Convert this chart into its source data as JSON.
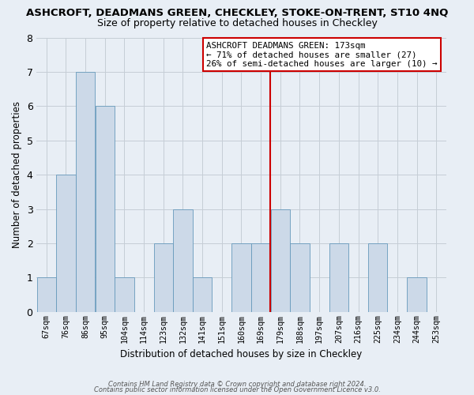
{
  "title": "ASHCROFT, DEADMANS GREEN, CHECKLEY, STOKE-ON-TRENT, ST10 4NQ",
  "subtitle": "Size of property relative to detached houses in Checkley",
  "xlabel": "Distribution of detached houses by size in Checkley",
  "ylabel": "Number of detached properties",
  "bin_labels": [
    "67sqm",
    "76sqm",
    "86sqm",
    "95sqm",
    "104sqm",
    "114sqm",
    "123sqm",
    "132sqm",
    "141sqm",
    "151sqm",
    "160sqm",
    "169sqm",
    "179sqm",
    "188sqm",
    "197sqm",
    "207sqm",
    "216sqm",
    "225sqm",
    "234sqm",
    "244sqm",
    "253sqm"
  ],
  "counts": [
    1,
    4,
    7,
    6,
    1,
    0,
    2,
    3,
    1,
    0,
    2,
    2,
    3,
    2,
    0,
    2,
    0,
    2,
    0,
    1,
    0
  ],
  "bar_color": "#ccd9e8",
  "bar_edge_color": "#6699bb",
  "grid_color": "#c5cdd6",
  "background_color": "#e8eef5",
  "vline_value": 173,
  "vline_color": "#cc0000",
  "annotation_title": "ASHCROFT DEADMANS GREEN: 173sqm",
  "annotation_line1": "← 71% of detached houses are smaller (27)",
  "annotation_line2": "26% of semi-detached houses are larger (10) →",
  "annotation_box_facecolor": "#ffffff",
  "annotation_box_edgecolor": "#cc0000",
  "ylim": [
    0,
    8
  ],
  "yticks": [
    0,
    1,
    2,
    3,
    4,
    5,
    6,
    7,
    8
  ],
  "footer_line1": "Contains HM Land Registry data © Crown copyright and database right 2024.",
  "footer_line2": "Contains public sector information licensed under the Open Government Licence v3.0."
}
